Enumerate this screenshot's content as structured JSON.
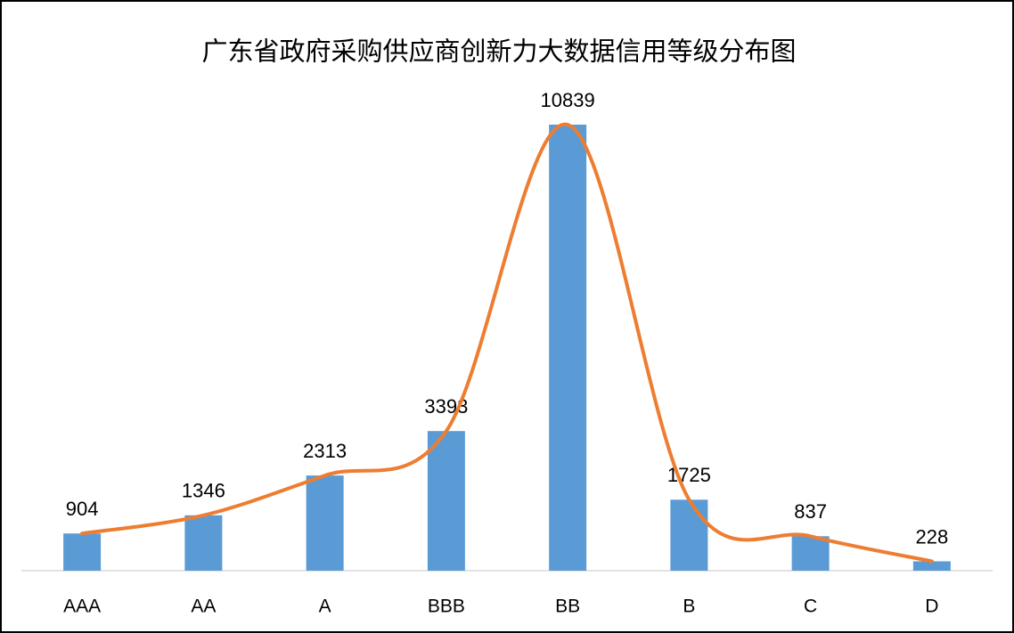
{
  "chart_data": {
    "type": "bar",
    "title": "广东省政府采购供应商创新力大数据信用等级分布图",
    "categories": [
      "AAA",
      "AA",
      "A",
      "BBB",
      "BB",
      "B",
      "C",
      "D"
    ],
    "values": [
      904,
      1346,
      2313,
      3393,
      10839,
      1725,
      837,
      228
    ],
    "color": "#5b9bd5",
    "line_color": "#ed7d31",
    "smooth_line": true
  }
}
